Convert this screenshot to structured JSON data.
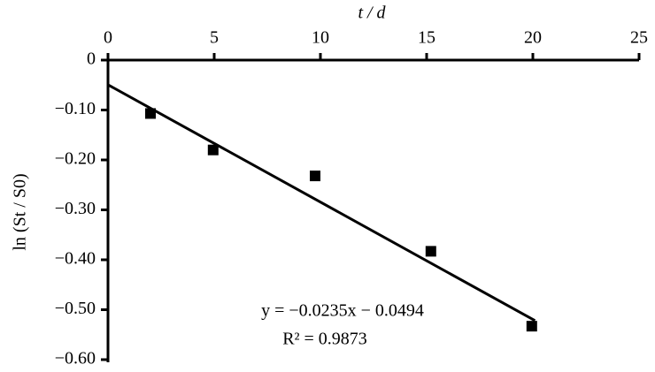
{
  "chart_data": {
    "type": "scatter",
    "xlabel": "t / d",
    "ylabel": "ln (St / S0)",
    "x": [
      2.0,
      4.95,
      9.75,
      15.2,
      19.95
    ],
    "series": [
      {
        "color": "#000000",
        "values": [
          -0.107,
          -0.18,
          -0.232,
          -0.383,
          -0.533
        ]
      }
    ],
    "trendline": {
      "x": [
        0,
        20.1
      ],
      "y": [
        -0.0494,
        -0.5218
      ],
      "color": "#000000"
    },
    "annotations": [
      "y = −0.0235x − 0.0494",
      "R² = 0.9873"
    ],
    "xlim": [
      0,
      25
    ],
    "xticks": [
      0,
      5,
      10,
      15,
      20,
      25
    ],
    "ylim": [
      -0.6,
      0
    ],
    "yticks": [
      0,
      {
        "value": -0.1,
        "label": "−0.10"
      },
      {
        "value": -0.2,
        "label": "−0.20"
      },
      {
        "value": -0.3,
        "label": "−0.30"
      },
      {
        "value": -0.4,
        "label": "−0.40"
      },
      {
        "value": -0.5,
        "label": "−0.50"
      },
      {
        "value": -0.6,
        "label": "−0.60"
      }
    ],
    "grid": false
  }
}
